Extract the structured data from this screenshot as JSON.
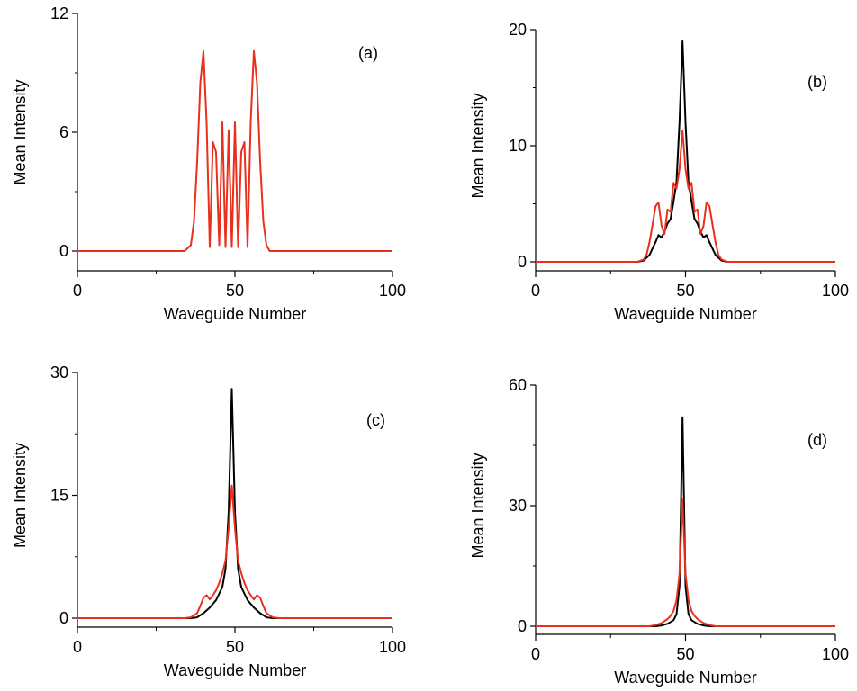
{
  "colors": {
    "black_series": "#000000",
    "red_series": "#e8301c"
  },
  "chart_data": [
    {
      "type": "line",
      "panel_label": "(a)",
      "xlabel": "Waveguide Number",
      "ylabel": "Mean Intensity",
      "xlim": [
        0,
        100
      ],
      "ylim": [
        0,
        12
      ],
      "xticks": [
        0,
        50,
        100
      ],
      "yticks": [
        0,
        6,
        12
      ],
      "grid": false,
      "series": [
        {
          "color": "red_series",
          "x": [
            0,
            34,
            36,
            37,
            38,
            39,
            40,
            41,
            42,
            43,
            44,
            45,
            46,
            47,
            48,
            49,
            50,
            51,
            52,
            53,
            54,
            55,
            56,
            57,
            58,
            59,
            60,
            61,
            62,
            64,
            100
          ],
          "y": [
            0,
            0,
            0.3,
            1.5,
            4.5,
            8.5,
            10.1,
            6.5,
            0.2,
            5.5,
            5.0,
            0.3,
            6.5,
            0.2,
            6.1,
            0.2,
            6.5,
            0.2,
            5.0,
            5.5,
            0.2,
            6.5,
            10.1,
            8.5,
            4.5,
            1.5,
            0.3,
            0,
            0,
            0,
            0
          ]
        }
      ]
    },
    {
      "type": "line",
      "panel_label": "(b)",
      "xlabel": "Waveguide Number",
      "ylabel": "Mean Intensity",
      "xlim": [
        0,
        100
      ],
      "ylim": [
        0,
        20
      ],
      "xticks": [
        0,
        50,
        100
      ],
      "yticks": [
        0,
        10,
        20
      ],
      "grid": false,
      "series": [
        {
          "color": "black_series",
          "x": [
            0,
            34,
            36,
            38,
            40,
            41,
            42,
            43,
            44,
            45,
            46,
            47,
            48,
            49,
            50,
            51,
            52,
            53,
            54,
            55,
            56,
            57,
            58,
            60,
            62,
            64,
            100
          ],
          "y": [
            0,
            0,
            0.1,
            0.6,
            1.7,
            2.3,
            2.1,
            2.6,
            3.3,
            3.7,
            5.2,
            6.9,
            12.0,
            19.0,
            12.0,
            6.9,
            5.2,
            3.7,
            3.3,
            2.6,
            2.1,
            2.3,
            1.7,
            0.6,
            0.1,
            0,
            0
          ]
        },
        {
          "color": "red_series",
          "x": [
            0,
            34,
            36,
            37,
            38,
            39,
            40,
            41,
            42,
            43,
            44,
            45,
            46,
            47,
            48,
            49,
            50,
            51,
            52,
            53,
            54,
            55,
            56,
            57,
            58,
            59,
            60,
            61,
            62,
            64,
            100
          ],
          "y": [
            0,
            0,
            0.2,
            0.6,
            1.7,
            3.2,
            4.8,
            5.1,
            3.1,
            2.4,
            4.5,
            4.3,
            6.8,
            6.3,
            8.0,
            11.3,
            8.0,
            6.3,
            6.8,
            4.3,
            4.5,
            2.4,
            3.1,
            5.1,
            4.8,
            3.2,
            1.7,
            0.6,
            0.2,
            0,
            0
          ]
        }
      ]
    },
    {
      "type": "line",
      "panel_label": "(c)",
      "xlabel": "Waveguide Number",
      "ylabel": "Mean Intensity",
      "xlim": [
        0,
        100
      ],
      "ylim": [
        0,
        30
      ],
      "xticks": [
        0,
        50,
        100
      ],
      "yticks": [
        0,
        15,
        30
      ],
      "grid": false,
      "series": [
        {
          "color": "black_series",
          "x": [
            0,
            36,
            38,
            40,
            42,
            44,
            46,
            47,
            48,
            49,
            50,
            51,
            52,
            54,
            56,
            58,
            60,
            62,
            100
          ],
          "y": [
            0,
            0,
            0.1,
            0.6,
            1.3,
            2.2,
            3.8,
            6.0,
            13.0,
            28.0,
            13.0,
            6.0,
            3.8,
            2.2,
            1.3,
            0.6,
            0.1,
            0,
            0
          ]
        },
        {
          "color": "red_series",
          "x": [
            0,
            34,
            36,
            38,
            39,
            40,
            41,
            42,
            43,
            44,
            45,
            46,
            47,
            48,
            49,
            50,
            51,
            52,
            53,
            54,
            55,
            56,
            57,
            58,
            59,
            60,
            62,
            64,
            100
          ],
          "y": [
            0,
            0,
            0.1,
            0.6,
            1.5,
            2.5,
            2.8,
            2.3,
            2.8,
            3.4,
            4.3,
            5.5,
            7.0,
            11.0,
            16.2,
            11.0,
            7.0,
            5.5,
            4.3,
            3.4,
            2.8,
            2.3,
            2.8,
            2.5,
            1.5,
            0.6,
            0.1,
            0,
            0
          ]
        }
      ]
    },
    {
      "type": "line",
      "panel_label": "(d)",
      "xlabel": "Waveguide Number",
      "ylabel": "Mean Intensity",
      "xlim": [
        0,
        100
      ],
      "ylim": [
        0,
        60
      ],
      "xticks": [
        0,
        50,
        100
      ],
      "yticks": [
        0,
        30,
        60
      ],
      "grid": false,
      "series": [
        {
          "color": "black_series",
          "x": [
            0,
            40,
            42,
            44,
            46,
            47,
            48,
            49,
            50,
            51,
            52,
            54,
            56,
            58,
            100
          ],
          "y": [
            0,
            0,
            0.2,
            0.6,
            1.5,
            3.0,
            10.0,
            52.0,
            10.0,
            3.0,
            1.5,
            0.6,
            0.2,
            0,
            0
          ]
        },
        {
          "color": "red_series",
          "x": [
            0,
            38,
            40,
            42,
            44,
            45,
            46,
            47,
            48,
            49,
            50,
            51,
            52,
            53,
            54,
            56,
            58,
            60,
            100
          ],
          "y": [
            0,
            0,
            0.3,
            0.8,
            1.8,
            2.6,
            3.8,
            6.5,
            13.0,
            31.5,
            13.0,
            6.5,
            3.8,
            2.6,
            1.8,
            0.8,
            0.3,
            0,
            0
          ]
        }
      ]
    }
  ]
}
